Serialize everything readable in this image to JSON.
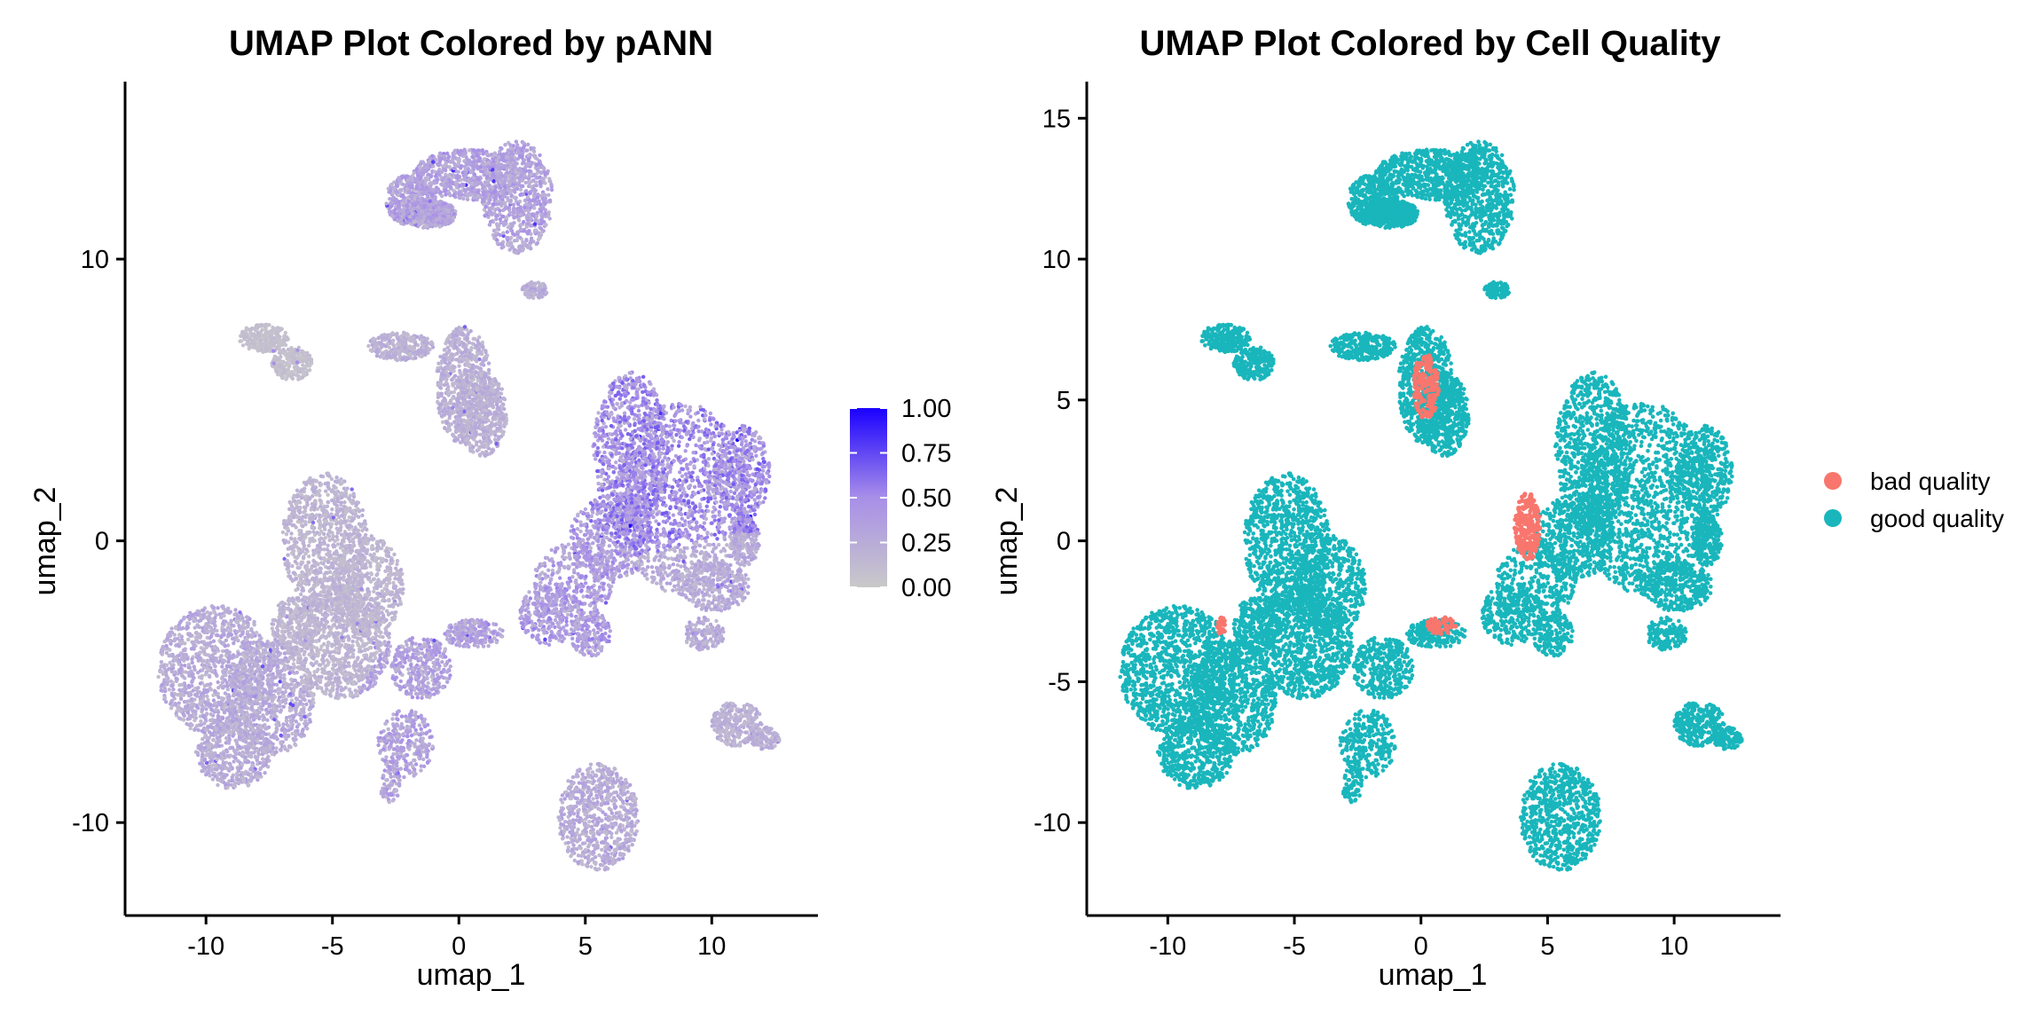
{
  "chart_data": [
    {
      "type": "scatter",
      "title": "UMAP Plot Colored by pANN",
      "xlabel": "umap_1",
      "ylabel": "umap_2",
      "xlim": [
        -13.2,
        14.2
      ],
      "ylim": [
        -13.3,
        16.3
      ],
      "xticks": [
        -10,
        -5,
        0,
        5,
        10
      ],
      "xtick_labels": [
        "-10",
        "-5",
        "0",
        "5",
        "10"
      ],
      "yticks": [
        -10,
        0,
        10
      ],
      "ytick_labels": [
        "-10",
        "0",
        "10"
      ],
      "grid": false,
      "color_variable": "pANN",
      "colorbar": {
        "min": 0,
        "max": 1,
        "low_color": "#c9c9c9",
        "high_color": "#1a00ff",
        "ticks": [
          1.0,
          0.75,
          0.5,
          0.25,
          0.0
        ],
        "tick_labels": [
          "1.00",
          "0.75",
          "0.50",
          "0.25",
          "0.00"
        ]
      },
      "clusters": [
        {
          "x": 2.0,
          "y": 12.6,
          "pann": 0.4
        },
        {
          "x": 3.0,
          "y": 8.9,
          "pann": 0.3
        },
        {
          "x": -7.7,
          "y": 6.8,
          "pann": 0.1
        },
        {
          "x": 0.0,
          "y": 5.0,
          "pann": 0.25
        },
        {
          "x": 8.0,
          "y": 2.5,
          "pann": 0.55
        },
        {
          "x": -5.0,
          "y": -2.0,
          "pann": 0.2
        },
        {
          "x": -9.5,
          "y": -4.7,
          "pann": 0.3
        },
        {
          "x": -0.5,
          "y": -4.5,
          "pann": 0.4
        },
        {
          "x": 5.0,
          "y": -3.0,
          "pann": 0.45
        },
        {
          "x": 9.0,
          "y": -3.0,
          "pann": 0.3
        },
        {
          "x": 5.5,
          "y": -9.5,
          "pann": 0.3
        },
        {
          "x": 11.0,
          "y": -6.6,
          "pann": 0.25
        }
      ]
    },
    {
      "type": "scatter",
      "title": "UMAP Plot Colored by Cell Quality",
      "xlabel": "umap_1",
      "ylabel": "umap_2",
      "xlim": [
        -13.2,
        14.2
      ],
      "ylim": [
        -13.3,
        16.3
      ],
      "xticks": [
        -10,
        -5,
        0,
        5,
        10
      ],
      "xtick_labels": [
        "-10",
        "-5",
        "0",
        "5",
        "10"
      ],
      "yticks": [
        -10,
        -5,
        0,
        5,
        10,
        15
      ],
      "ytick_labels": [
        "-10",
        "-5",
        "0",
        "5",
        "10",
        "15"
      ],
      "grid": false,
      "legend": {
        "position": "right",
        "entries": [
          {
            "label": "bad quality",
            "color": "#F8766D"
          },
          {
            "label": "good quality",
            "color": "#19B6BC"
          }
        ]
      },
      "bad_quality_regions": [
        {
          "x": 0.2,
          "y": 5.5
        },
        {
          "x": 4.2,
          "y": 0.5
        },
        {
          "x": 0.8,
          "y": -3.0
        },
        {
          "x": -7.9,
          "y": -3.0
        }
      ]
    }
  ]
}
